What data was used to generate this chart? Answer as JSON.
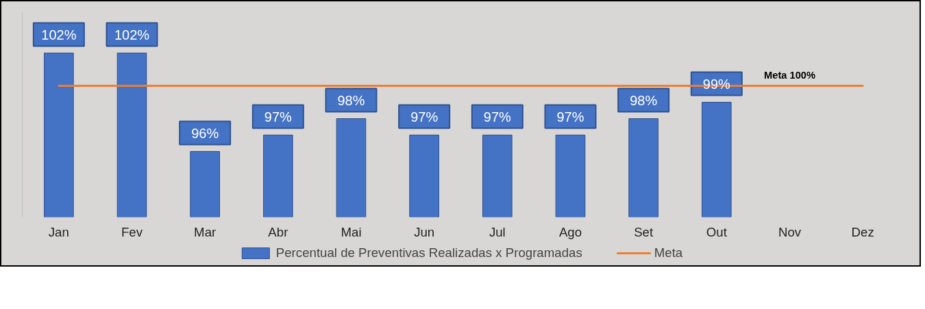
{
  "chart_data": {
    "type": "bar",
    "categories": [
      "Jan",
      "Fev",
      "Mar",
      "Abr",
      "Mai",
      "Jun",
      "Jul",
      "Ago",
      "Set",
      "Out",
      "Nov",
      "Dez"
    ],
    "series": [
      {
        "name": "Percentual de Preventivas Realizadas x Programadas",
        "color": "#4472c4",
        "values": [
          102,
          102,
          96,
          97,
          98,
          97,
          97,
          97,
          98,
          99,
          null,
          null
        ],
        "value_labels": [
          "102%",
          "102%",
          "96%",
          "97%",
          "98%",
          "97%",
          "97%",
          "97%",
          "98%",
          "99%",
          null,
          null
        ]
      },
      {
        "name": "Meta",
        "type": "line",
        "color": "#ed7d31",
        "values": [
          100,
          100,
          100,
          100,
          100,
          100,
          100,
          100,
          100,
          100,
          100,
          100
        ]
      }
    ],
    "ylim": [
      92,
      104.5
    ],
    "tick_labels": "x",
    "grid": false,
    "legend": "bottom",
    "annotations": [
      {
        "text": "Meta 100%",
        "x": "Nov",
        "y": 100
      }
    ]
  }
}
